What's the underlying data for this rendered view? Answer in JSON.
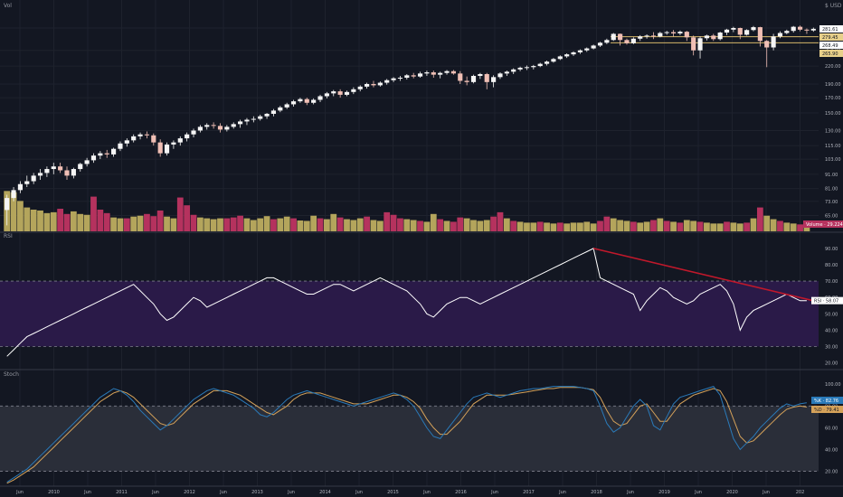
{
  "colors": {
    "background": "#131722",
    "grid": "#1e222d",
    "up": "#f5f5f5",
    "down": "#f0bfb5",
    "vol_up": "#b4a55c",
    "vol_down": "#b5325e",
    "rsi_line": "#ffffff",
    "rsi_band": "#2a1a48",
    "rsi_trend": "#c0182b",
    "stoch_k": "#2a7ab9",
    "stoch_d": "#d5a25a",
    "stoch_band": "#2a2e39",
    "level_line": "#d5b76a",
    "level_tag": "#e8d08a",
    "pane_border": "#363a45"
  },
  "labels": {
    "price_pane": "Vol",
    "rsi_pane": "RSI",
    "stoch_pane": "Stoch",
    "currency": "$ USD"
  },
  "price_tags": [
    {
      "text": "281.61",
      "value": 281.61,
      "bg": "#ffffff",
      "fg": "#131722"
    },
    {
      "text": "279.45",
      "value": 279.45,
      "bg": "#e8d08a",
      "fg": "#131722"
    },
    {
      "text": "268.49",
      "value": 268.49,
      "bg": "#ffffff",
      "fg": "#131722"
    },
    {
      "text": "265.90",
      "value": 265.9,
      "bg": "#e8d08a",
      "fg": "#131722"
    }
  ],
  "volume_tag": {
    "text": "Volume · 29.224m",
    "bg": "#b5325e",
    "fg": "#ffffff"
  },
  "rsi_tag": {
    "text": "RSI · 58.07",
    "bg": "#ffffff",
    "fg": "#131722"
  },
  "stoch_tags": [
    {
      "text": "%K · 82.76",
      "value": 82.76,
      "bg": "#2a7ab9",
      "fg": "#ffffff"
    },
    {
      "text": "%D · 79.41",
      "value": 79.41,
      "bg": "#d5a25a",
      "fg": "#131722"
    }
  ],
  "chart_data": {
    "type": "candlestick",
    "price_axis": {
      "scale": "log",
      "ticks": [
        65,
        73,
        81,
        91,
        103,
        115,
        130,
        150,
        170,
        190,
        220,
        250,
        300
      ],
      "range": [
        58,
        340
      ]
    },
    "rsi_axis": {
      "ticks": [
        20,
        30,
        40,
        50,
        60,
        70,
        80,
        90
      ],
      "range": [
        17,
        96
      ],
      "band": [
        30,
        70
      ]
    },
    "stoch_axis": {
      "ticks": [
        20,
        40,
        60,
        80,
        100
      ],
      "range": [
        8,
        106
      ],
      "band": [
        20,
        80
      ]
    },
    "x_axis": {
      "ticks": [
        "Jun",
        "2010",
        "Jun",
        "2011",
        "Jun",
        "2012",
        "Jun",
        "2013",
        "Jun",
        "2014",
        "Jun",
        "2015",
        "Jun",
        "2016",
        "Jun",
        "2017",
        "Jun",
        "2018",
        "Jun",
        "2019",
        "Jun",
        "2020",
        "Jun",
        "202"
      ]
    },
    "candles": [
      [
        68,
        77,
        60,
        75
      ],
      [
        75,
        82,
        73,
        80
      ],
      [
        80,
        86,
        78,
        84
      ],
      [
        84,
        90,
        82,
        86
      ],
      [
        86,
        92,
        84,
        90
      ],
      [
        90,
        95,
        87,
        92
      ],
      [
        92,
        97,
        89,
        95
      ],
      [
        95,
        100,
        91,
        97
      ],
      [
        97,
        100,
        92,
        94
      ],
      [
        94,
        97,
        87,
        90
      ],
      [
        90,
        96,
        88,
        95
      ],
      [
        95,
        100,
        93,
        99
      ],
      [
        99,
        104,
        97,
        102
      ],
      [
        102,
        108,
        100,
        106
      ],
      [
        106,
        110,
        103,
        108
      ],
      [
        108,
        111,
        104,
        107
      ],
      [
        107,
        113,
        105,
        112
      ],
      [
        112,
        119,
        110,
        117
      ],
      [
        117,
        122,
        114,
        120
      ],
      [
        120,
        126,
        118,
        124
      ],
      [
        124,
        128,
        121,
        126
      ],
      [
        126,
        129,
        122,
        125
      ],
      [
        125,
        127,
        115,
        118
      ],
      [
        118,
        121,
        105,
        108
      ],
      [
        108,
        118,
        106,
        116
      ],
      [
        116,
        120,
        112,
        118
      ],
      [
        118,
        124,
        115,
        122
      ],
      [
        122,
        128,
        119,
        126
      ],
      [
        126,
        132,
        123,
        130
      ],
      [
        130,
        136,
        128,
        134
      ],
      [
        134,
        138,
        131,
        136
      ],
      [
        136,
        139,
        132,
        135
      ],
      [
        135,
        138,
        128,
        131
      ],
      [
        131,
        136,
        129,
        134
      ],
      [
        134,
        139,
        132,
        137
      ],
      [
        137,
        142,
        133,
        140
      ],
      [
        140,
        144,
        136,
        142
      ],
      [
        142,
        146,
        139,
        143
      ],
      [
        143,
        148,
        141,
        146
      ],
      [
        146,
        150,
        143,
        149
      ],
      [
        149,
        155,
        146,
        153
      ],
      [
        153,
        159,
        151,
        157
      ],
      [
        157,
        163,
        155,
        161
      ],
      [
        161,
        167,
        158,
        165
      ],
      [
        165,
        170,
        163,
        168
      ],
      [
        168,
        170,
        160,
        163
      ],
      [
        163,
        169,
        161,
        167
      ],
      [
        167,
        174,
        164,
        172
      ],
      [
        172,
        178,
        169,
        176
      ],
      [
        176,
        181,
        172,
        179
      ],
      [
        179,
        182,
        170,
        174
      ],
      [
        174,
        180,
        172,
        178
      ],
      [
        178,
        185,
        175,
        182
      ],
      [
        182,
        188,
        179,
        186
      ],
      [
        186,
        192,
        183,
        190
      ],
      [
        190,
        195,
        185,
        188
      ],
      [
        188,
        194,
        186,
        192
      ],
      [
        192,
        198,
        189,
        196
      ],
      [
        196,
        201,
        193,
        199
      ],
      [
        199,
        203,
        195,
        200
      ],
      [
        200,
        206,
        197,
        204
      ],
      [
        204,
        208,
        199,
        202
      ],
      [
        202,
        210,
        200,
        207
      ],
      [
        207,
        212,
        203,
        209
      ],
      [
        209,
        212,
        200,
        205
      ],
      [
        205,
        210,
        199,
        208
      ],
      [
        208,
        213,
        205,
        211
      ],
      [
        211,
        213,
        205,
        207
      ],
      [
        207,
        211,
        190,
        195
      ],
      [
        195,
        202,
        188,
        193
      ],
      [
        193,
        205,
        191,
        203
      ],
      [
        203,
        208,
        198,
        206
      ],
      [
        206,
        208,
        182,
        193
      ],
      [
        193,
        204,
        185,
        201
      ],
      [
        201,
        209,
        198,
        207
      ],
      [
        207,
        212,
        203,
        210
      ],
      [
        210,
        216,
        206,
        214
      ],
      [
        214,
        219,
        211,
        217
      ],
      [
        217,
        221,
        213,
        218
      ],
      [
        218,
        222,
        214,
        220
      ],
      [
        220,
        226,
        218,
        224
      ],
      [
        224,
        230,
        221,
        228
      ],
      [
        228,
        235,
        226,
        233
      ],
      [
        233,
        240,
        231,
        238
      ],
      [
        238,
        244,
        235,
        242
      ],
      [
        242,
        248,
        239,
        246
      ],
      [
        246,
        252,
        243,
        250
      ],
      [
        250,
        256,
        247,
        254
      ],
      [
        254,
        262,
        252,
        260
      ],
      [
        260,
        268,
        257,
        266
      ],
      [
        266,
        275,
        263,
        272
      ],
      [
        272,
        288,
        270,
        286
      ],
      [
        286,
        287,
        260,
        272
      ],
      [
        272,
        275,
        262,
        265
      ],
      [
        265,
        278,
        263,
        275
      ],
      [
        275,
        283,
        270,
        280
      ],
      [
        280,
        285,
        275,
        282
      ],
      [
        282,
        290,
        274,
        280
      ],
      [
        280,
        291,
        278,
        288
      ],
      [
        288,
        293,
        284,
        290
      ],
      [
        290,
        295,
        280,
        287
      ],
      [
        287,
        294,
        283,
        291
      ],
      [
        291,
        293,
        270,
        278
      ],
      [
        278,
        282,
        240,
        250
      ],
      [
        250,
        280,
        234,
        276
      ],
      [
        276,
        284,
        271,
        282
      ],
      [
        282,
        286,
        270,
        274
      ],
      [
        274,
        291,
        271,
        289
      ],
      [
        289,
        298,
        283,
        296
      ],
      [
        296,
        303,
        290,
        300
      ],
      [
        300,
        301,
        274,
        284
      ],
      [
        284,
        297,
        282,
        295
      ],
      [
        295,
        305,
        292,
        302
      ],
      [
        302,
        303,
        258,
        270
      ],
      [
        270,
        272,
        218,
        256
      ],
      [
        256,
        286,
        250,
        280
      ],
      [
        280,
        292,
        276,
        288
      ],
      [
        288,
        296,
        285,
        293
      ],
      [
        293,
        305,
        289,
        303
      ],
      [
        303,
        306,
        292,
        296
      ],
      [
        296,
        299,
        286,
        294
      ],
      [
        294,
        301,
        291,
        298
      ]
    ],
    "volumes": [
      [
        0.93,
        0
      ],
      [
        0.9,
        0
      ],
      [
        0.7,
        0
      ],
      [
        0.55,
        0
      ],
      [
        0.5,
        0
      ],
      [
        0.48,
        0
      ],
      [
        0.42,
        0
      ],
      [
        0.44,
        0
      ],
      [
        0.52,
        1
      ],
      [
        0.4,
        1
      ],
      [
        0.46,
        0
      ],
      [
        0.4,
        0
      ],
      [
        0.38,
        0
      ],
      [
        0.8,
        1
      ],
      [
        0.5,
        1
      ],
      [
        0.42,
        1
      ],
      [
        0.32,
        0
      ],
      [
        0.3,
        0
      ],
      [
        0.3,
        1
      ],
      [
        0.34,
        0
      ],
      [
        0.36,
        0
      ],
      [
        0.4,
        1
      ],
      [
        0.35,
        1
      ],
      [
        0.48,
        1
      ],
      [
        0.34,
        0
      ],
      [
        0.3,
        0
      ],
      [
        0.78,
        1
      ],
      [
        0.6,
        1
      ],
      [
        0.38,
        1
      ],
      [
        0.32,
        0
      ],
      [
        0.3,
        0
      ],
      [
        0.28,
        0
      ],
      [
        0.3,
        0
      ],
      [
        0.3,
        1
      ],
      [
        0.32,
        1
      ],
      [
        0.36,
        1
      ],
      [
        0.3,
        0
      ],
      [
        0.26,
        0
      ],
      [
        0.3,
        0
      ],
      [
        0.35,
        0
      ],
      [
        0.28,
        1
      ],
      [
        0.3,
        0
      ],
      [
        0.34,
        0
      ],
      [
        0.3,
        1
      ],
      [
        0.25,
        0
      ],
      [
        0.24,
        0
      ],
      [
        0.36,
        0
      ],
      [
        0.3,
        1
      ],
      [
        0.28,
        0
      ],
      [
        0.4,
        0
      ],
      [
        0.32,
        1
      ],
      [
        0.28,
        0
      ],
      [
        0.26,
        0
      ],
      [
        0.3,
        0
      ],
      [
        0.34,
        1
      ],
      [
        0.26,
        0
      ],
      [
        0.24,
        0
      ],
      [
        0.44,
        1
      ],
      [
        0.38,
        1
      ],
      [
        0.3,
        1
      ],
      [
        0.28,
        0
      ],
      [
        0.26,
        0
      ],
      [
        0.24,
        1
      ],
      [
        0.22,
        0
      ],
      [
        0.4,
        0
      ],
      [
        0.28,
        1
      ],
      [
        0.24,
        0
      ],
      [
        0.22,
        1
      ],
      [
        0.32,
        1
      ],
      [
        0.3,
        0
      ],
      [
        0.26,
        0
      ],
      [
        0.24,
        0
      ],
      [
        0.26,
        0
      ],
      [
        0.34,
        1
      ],
      [
        0.44,
        1
      ],
      [
        0.3,
        0
      ],
      [
        0.24,
        1
      ],
      [
        0.22,
        0
      ],
      [
        0.2,
        0
      ],
      [
        0.2,
        0
      ],
      [
        0.22,
        1
      ],
      [
        0.2,
        0
      ],
      [
        0.18,
        0
      ],
      [
        0.2,
        1
      ],
      [
        0.18,
        0
      ],
      [
        0.2,
        0
      ],
      [
        0.2,
        0
      ],
      [
        0.22,
        0
      ],
      [
        0.18,
        0
      ],
      [
        0.24,
        1
      ],
      [
        0.34,
        1
      ],
      [
        0.3,
        0
      ],
      [
        0.26,
        0
      ],
      [
        0.24,
        0
      ],
      [
        0.22,
        1
      ],
      [
        0.2,
        0
      ],
      [
        0.22,
        0
      ],
      [
        0.26,
        1
      ],
      [
        0.3,
        0
      ],
      [
        0.24,
        1
      ],
      [
        0.22,
        0
      ],
      [
        0.2,
        1
      ],
      [
        0.26,
        0
      ],
      [
        0.24,
        0
      ],
      [
        0.22,
        1
      ],
      [
        0.2,
        0
      ],
      [
        0.18,
        0
      ],
      [
        0.18,
        0
      ],
      [
        0.22,
        1
      ],
      [
        0.2,
        0
      ],
      [
        0.18,
        0
      ],
      [
        0.2,
        1
      ],
      [
        0.3,
        0
      ],
      [
        0.55,
        1
      ],
      [
        0.36,
        0
      ],
      [
        0.28,
        0
      ],
      [
        0.24,
        1
      ],
      [
        0.2,
        0
      ],
      [
        0.18,
        0
      ],
      [
        0.16,
        1
      ],
      [
        0.14,
        0
      ]
    ],
    "rsi": [
      24,
      28,
      32,
      36,
      38,
      40,
      42,
      44,
      46,
      48,
      50,
      52,
      54,
      56,
      58,
      60,
      62,
      64,
      66,
      68,
      64,
      60,
      56,
      50,
      46,
      48,
      52,
      56,
      60,
      58,
      54,
      56,
      58,
      60,
      62,
      64,
      66,
      68,
      70,
      72,
      72,
      70,
      68,
      66,
      64,
      62,
      62,
      64,
      66,
      68,
      68,
      66,
      64,
      66,
      68,
      70,
      72,
      70,
      68,
      66,
      64,
      60,
      56,
      50,
      48,
      52,
      56,
      58,
      60,
      60,
      58,
      56,
      58,
      60,
      62,
      64,
      66,
      68,
      70,
      72,
      74,
      76,
      78,
      80,
      82,
      84,
      86,
      88,
      90,
      72,
      70,
      68,
      66,
      64,
      62,
      52,
      58,
      62,
      66,
      64,
      60,
      58,
      56,
      58,
      62,
      64,
      66,
      68,
      64,
      56,
      40,
      48,
      52,
      54,
      56,
      58,
      60,
      62,
      60,
      58,
      58
    ],
    "rsi_trendline": {
      "from": [
        88,
        90
      ],
      "to": [
        121,
        58
      ]
    },
    "stoch_k": [
      10,
      14,
      18,
      22,
      28,
      34,
      40,
      46,
      52,
      58,
      64,
      70,
      76,
      82,
      88,
      92,
      96,
      94,
      90,
      84,
      76,
      70,
      64,
      58,
      62,
      68,
      74,
      80,
      86,
      90,
      94,
      96,
      94,
      92,
      90,
      86,
      82,
      78,
      72,
      70,
      74,
      80,
      86,
      90,
      92,
      94,
      92,
      90,
      88,
      86,
      84,
      82,
      80,
      82,
      84,
      86,
      88,
      90,
      92,
      90,
      86,
      80,
      70,
      60,
      52,
      50,
      58,
      66,
      74,
      82,
      88,
      90,
      92,
      90,
      88,
      90,
      92,
      94,
      95,
      96,
      96,
      97,
      98,
      98,
      98,
      98,
      97,
      96,
      94,
      80,
      64,
      56,
      60,
      70,
      80,
      86,
      80,
      62,
      58,
      70,
      82,
      88,
      90,
      92,
      94,
      96,
      98,
      90,
      70,
      50,
      40,
      46,
      52,
      60,
      66,
      72,
      78,
      82,
      80,
      82,
      83
    ],
    "stoch_d": [
      9,
      12,
      16,
      20,
      24,
      30,
      36,
      42,
      48,
      54,
      60,
      66,
      72,
      78,
      84,
      88,
      92,
      94,
      92,
      88,
      82,
      76,
      70,
      64,
      62,
      64,
      70,
      76,
      82,
      86,
      90,
      94,
      94,
      94,
      92,
      90,
      86,
      82,
      78,
      74,
      72,
      76,
      80,
      86,
      90,
      92,
      92,
      92,
      90,
      88,
      86,
      84,
      82,
      82,
      82,
      84,
      86,
      88,
      90,
      90,
      88,
      84,
      78,
      68,
      60,
      54,
      54,
      60,
      66,
      74,
      82,
      86,
      90,
      90,
      90,
      90,
      91,
      92,
      93,
      94,
      95,
      96,
      96,
      97,
      97,
      97,
      97,
      96,
      95,
      88,
      76,
      66,
      62,
      64,
      72,
      80,
      82,
      74,
      66,
      66,
      74,
      82,
      86,
      90,
      92,
      94,
      96,
      94,
      84,
      68,
      52,
      46,
      48,
      54,
      60,
      66,
      72,
      77,
      79,
      80,
      79
    ]
  }
}
